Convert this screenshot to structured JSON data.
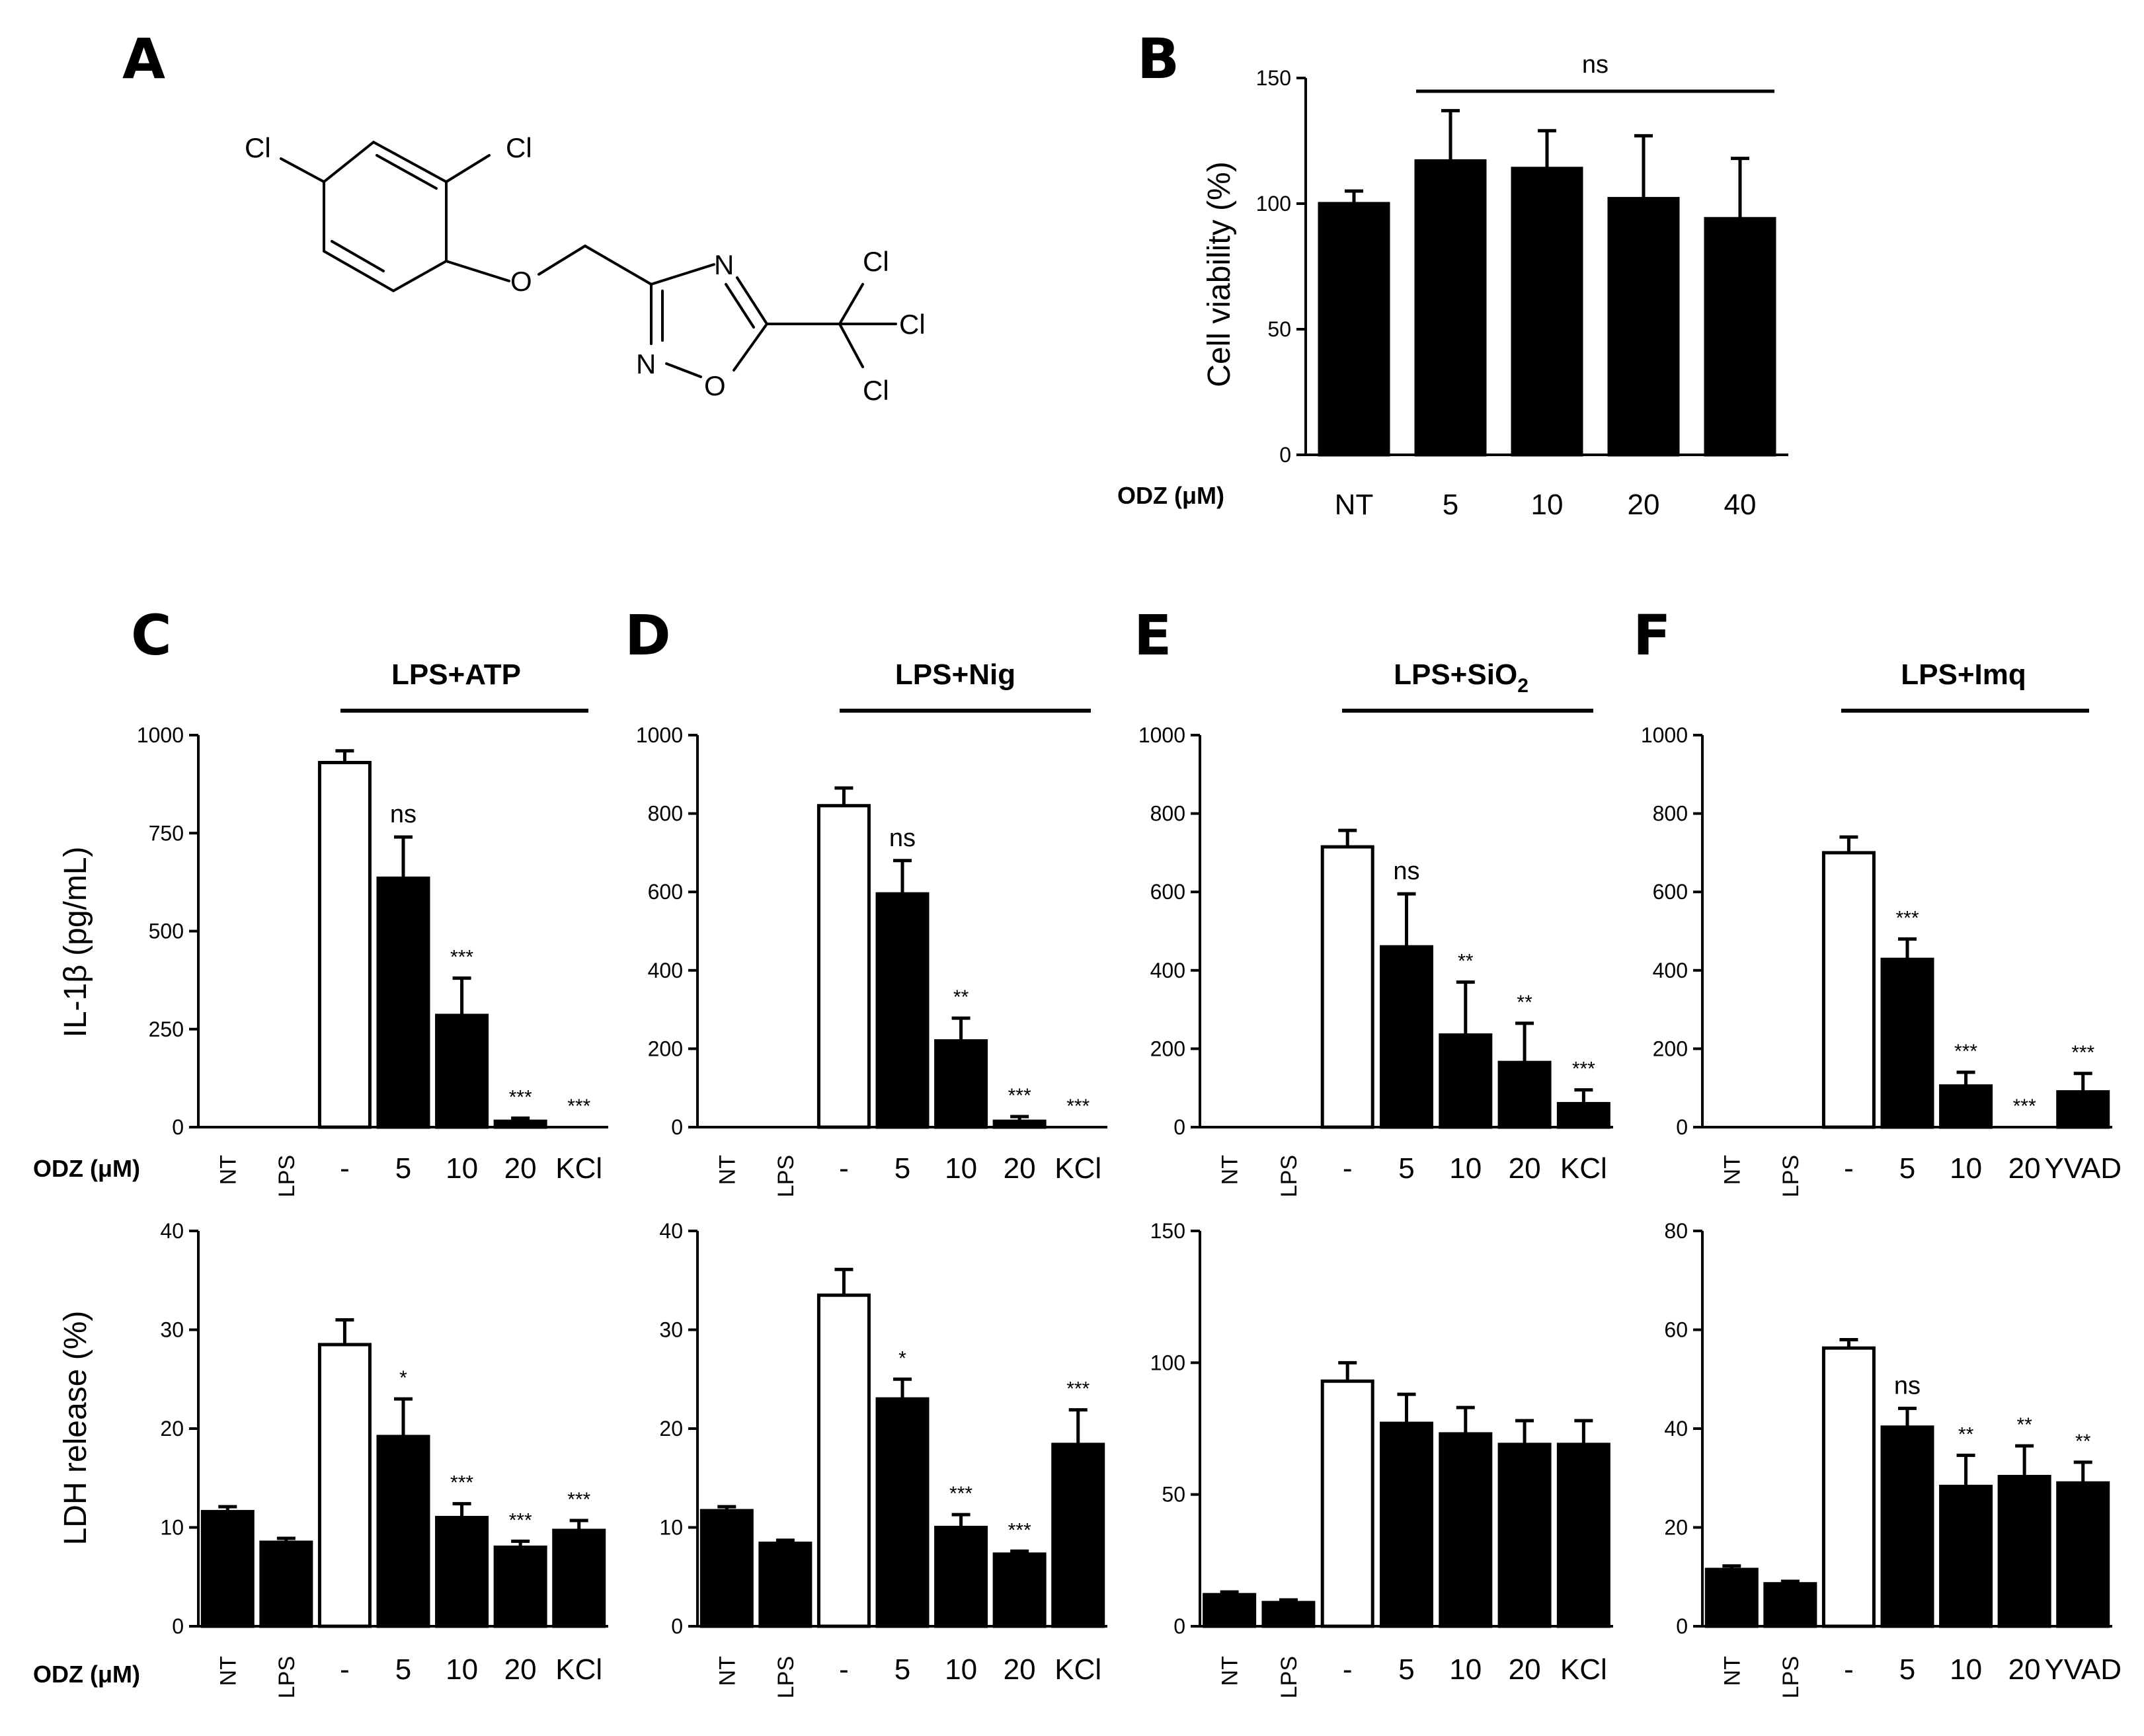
{
  "panel_letters": {
    "A": "A",
    "B": "B",
    "C": "C",
    "D": "D",
    "E": "E",
    "F": "F"
  },
  "structure": {
    "atoms": {
      "cl_left": "Cl",
      "cl_top": "Cl",
      "o_ether": "O",
      "n_top": "N",
      "n_bottom": "N",
      "o_ring": "O",
      "cl_r1": "Cl",
      "cl_r2": "Cl",
      "cl_r3": "Cl"
    }
  },
  "odz_label": "ODZ (μM)",
  "ylabels": {
    "viability": "Cell viability (%)",
    "il1b": "IL-1β (pg/mL)",
    "ldh": "LDH release (%)"
  },
  "conditions": {
    "C": "LPS+ATP",
    "D": "LPS+Nig",
    "E_main": "LPS+SiO",
    "E_sub": "2",
    "F": "LPS+Imq"
  },
  "colors": {
    "filled": "#000000",
    "open": "#ffffff",
    "axis": "#000000"
  },
  "chart_data": [
    {
      "id": "B",
      "type": "bar",
      "ylabel": "Cell viability (%)",
      "ylim": [
        0,
        150
      ],
      "yticks": [
        0,
        50,
        100,
        150
      ],
      "categories": [
        "NT",
        "5",
        "10",
        "20",
        "40"
      ],
      "values": [
        100,
        117,
        114,
        102,
        94
      ],
      "errors": [
        5,
        20,
        15,
        25,
        24
      ],
      "fill": [
        "filled",
        "filled",
        "filled",
        "filled",
        "filled"
      ],
      "significance": [
        "",
        "",
        "",
        "",
        ""
      ],
      "bracket": {
        "label": "ns",
        "from": 1,
        "to": 4
      }
    },
    {
      "id": "C1",
      "type": "bar",
      "ylabel": "IL-1β (pg/mL)",
      "ylim": [
        0,
        1000
      ],
      "yticks": [
        0,
        250,
        500,
        750,
        1000
      ],
      "categories": [
        "NT",
        "LPS",
        "-",
        "5",
        "10",
        "20",
        "KCl"
      ],
      "values": [
        0,
        0,
        930,
        635,
        285,
        15,
        0
      ],
      "errors": [
        0,
        0,
        30,
        105,
        95,
        8,
        0
      ],
      "fill": [
        "filled",
        "filled",
        "open",
        "filled",
        "filled",
        "filled",
        "filled"
      ],
      "significance": [
        "",
        "",
        "",
        "ns",
        "***",
        "***",
        "***"
      ]
    },
    {
      "id": "D1",
      "type": "bar",
      "ylabel": "",
      "ylim": [
        0,
        1000
      ],
      "yticks": [
        0,
        200,
        400,
        600,
        800,
        1000
      ],
      "categories": [
        "NT",
        "LPS",
        "-",
        "5",
        "10",
        "20",
        "KCl"
      ],
      "values": [
        0,
        0,
        820,
        595,
        220,
        15,
        0
      ],
      "errors": [
        0,
        0,
        45,
        85,
        58,
        12,
        0
      ],
      "fill": [
        "filled",
        "filled",
        "open",
        "filled",
        "filled",
        "filled",
        "filled"
      ],
      "significance": [
        "",
        "",
        "",
        "ns",
        "**",
        "***",
        "***"
      ]
    },
    {
      "id": "E1",
      "type": "bar",
      "ylabel": "",
      "ylim": [
        0,
        1000
      ],
      "yticks": [
        0,
        200,
        400,
        600,
        800,
        1000
      ],
      "categories": [
        "NT",
        "LPS",
        "-",
        "5",
        "10",
        "20",
        "KCl"
      ],
      "values": [
        0,
        0,
        715,
        460,
        235,
        165,
        60
      ],
      "errors": [
        0,
        0,
        42,
        135,
        135,
        100,
        35
      ],
      "fill": [
        "filled",
        "filled",
        "open",
        "filled",
        "filled",
        "filled",
        "filled"
      ],
      "significance": [
        "",
        "",
        "",
        "ns",
        "**",
        "**",
        "***"
      ]
    },
    {
      "id": "F1",
      "type": "bar",
      "ylabel": "",
      "ylim": [
        0,
        1000
      ],
      "yticks": [
        0,
        200,
        400,
        600,
        800,
        1000
      ],
      "categories": [
        "NT",
        "LPS",
        "-",
        "5",
        "10",
        "20",
        "YVAD"
      ],
      "values": [
        0,
        0,
        700,
        428,
        105,
        0,
        90
      ],
      "errors": [
        0,
        0,
        40,
        52,
        35,
        0,
        47
      ],
      "fill": [
        "filled",
        "filled",
        "open",
        "filled",
        "filled",
        "filled",
        "filled"
      ],
      "significance": [
        "",
        "",
        "",
        "***",
        "***",
        "***",
        "***"
      ]
    },
    {
      "id": "C2",
      "type": "bar",
      "ylabel": "LDH release (%)",
      "ylim": [
        0,
        40
      ],
      "yticks": [
        0,
        10,
        20,
        30,
        40
      ],
      "categories": [
        "NT",
        "LPS",
        "-",
        "5",
        "10",
        "20",
        "KCl"
      ],
      "values": [
        11.6,
        8.5,
        28.5,
        19.2,
        11.0,
        8.0,
        9.7
      ],
      "errors": [
        0.5,
        0.4,
        2.5,
        3.8,
        1.4,
        0.6,
        1.0
      ],
      "fill": [
        "filled",
        "filled",
        "open",
        "filled",
        "filled",
        "filled",
        "filled"
      ],
      "significance": [
        "",
        "",
        "",
        "*",
        "***",
        "***",
        "***"
      ]
    },
    {
      "id": "D2",
      "type": "bar",
      "ylabel": "",
      "ylim": [
        0,
        40
      ],
      "yticks": [
        0,
        10,
        20,
        30,
        40
      ],
      "categories": [
        "NT",
        "LPS",
        "-",
        "5",
        "10",
        "20",
        "KCl"
      ],
      "values": [
        11.7,
        8.4,
        33.5,
        23.0,
        10.0,
        7.3,
        18.4
      ],
      "errors": [
        0.4,
        0.3,
        2.6,
        2.0,
        1.3,
        0.3,
        3.5
      ],
      "fill": [
        "filled",
        "filled",
        "open",
        "filled",
        "filled",
        "filled",
        "filled"
      ],
      "significance": [
        "",
        "",
        "",
        "*",
        "***",
        "***",
        "***"
      ]
    },
    {
      "id": "E2",
      "type": "bar",
      "ylabel": "",
      "ylim": [
        0,
        150
      ],
      "yticks": [
        0,
        50,
        100,
        150
      ],
      "categories": [
        "NT",
        "LPS",
        "-",
        "5",
        "10",
        "20",
        "KCl"
      ],
      "values": [
        12,
        9,
        93,
        77,
        73,
        69,
        69
      ],
      "errors": [
        1,
        1,
        7,
        11,
        10,
        9,
        9
      ],
      "fill": [
        "filled",
        "filled",
        "open",
        "filled",
        "filled",
        "filled",
        "filled"
      ],
      "significance": [
        "",
        "",
        "",
        "",
        "",
        "",
        ""
      ]
    },
    {
      "id": "F2",
      "type": "bar",
      "ylabel": "",
      "ylim": [
        0,
        80
      ],
      "yticks": [
        0,
        20,
        40,
        60,
        80
      ],
      "categories": [
        "NT",
        "LPS",
        "-",
        "5",
        "10",
        "20",
        "YVAD"
      ],
      "values": [
        11.5,
        8.6,
        56.3,
        40.3,
        28.3,
        30.3,
        29.0
      ],
      "errors": [
        0.7,
        0.5,
        1.7,
        3.8,
        6.3,
        6.2,
        4.2
      ],
      "fill": [
        "filled",
        "filled",
        "open",
        "filled",
        "filled",
        "filled",
        "filled"
      ],
      "significance": [
        "",
        "",
        "",
        "ns",
        "**",
        "**",
        "**"
      ]
    }
  ]
}
